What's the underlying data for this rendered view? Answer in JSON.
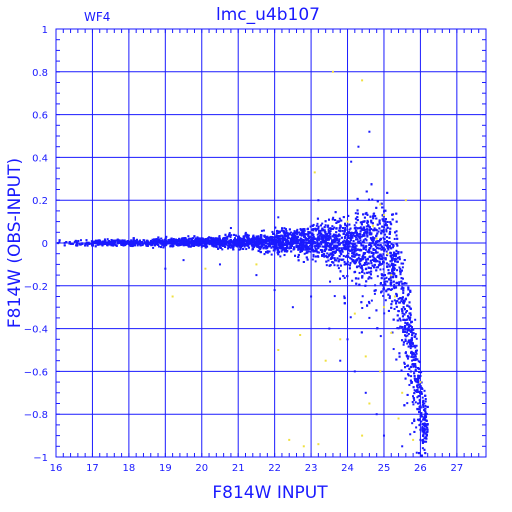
{
  "chart_data": {
    "type": "scatter",
    "title": "lmc_u4b107",
    "panel_label": "WF4",
    "xlabel": "F814W  INPUT",
    "ylabel": "F814W  (OBS-INPUT)",
    "xlim": [
      16,
      27.8
    ],
    "ylim": [
      -1,
      1
    ],
    "x_ticks": [
      16,
      17,
      18,
      19,
      20,
      21,
      22,
      23,
      24,
      25,
      26,
      27
    ],
    "y_ticks": [
      -1,
      -0.8,
      -0.6,
      -0.4,
      -0.2,
      0,
      0.2,
      0.4,
      0.6,
      0.8,
      1
    ],
    "x_tick_labels": [
      "16",
      "17",
      "18",
      "19",
      "20",
      "21",
      "22",
      "23",
      "24",
      "25",
      "26",
      "27"
    ],
    "y_tick_labels": [
      "−1",
      "−0.8",
      "−0.6",
      "−0.4",
      "−0.2",
      "0",
      "0.2",
      "0.4",
      "0.6",
      "0.8",
      "1"
    ],
    "grid": true,
    "series": [
      {
        "color": "#1a1aff",
        "note_points": "dense band centered at 0, spread grows with magnitude",
        "envelope": [
          {
            "x": 16.0,
            "spread": 0.012,
            "mean": 0.0
          },
          {
            "x": 18.0,
            "spread": 0.012,
            "mean": 0.0
          },
          {
            "x": 20.0,
            "spread": 0.018,
            "mean": 0.005
          },
          {
            "x": 21.0,
            "spread": 0.025,
            "mean": 0.005
          },
          {
            "x": 22.0,
            "spread": 0.04,
            "mean": 0.005
          },
          {
            "x": 23.0,
            "spread": 0.06,
            "mean": 0.005
          },
          {
            "x": 24.0,
            "spread": 0.1,
            "mean": 0.0
          },
          {
            "x": 24.8,
            "spread": 0.16,
            "mean": 0.0
          },
          {
            "x": 25.3,
            "spread": 0.2,
            "mean": -0.1
          },
          {
            "x": 25.8,
            "spread": 0.2,
            "mean": -0.5
          },
          {
            "x": 26.1,
            "spread": 0.1,
            "mean": -0.85
          }
        ],
        "outliers": [
          {
            "x": 19.0,
            "y": -0.12
          },
          {
            "x": 19.5,
            "y": -0.08
          },
          {
            "x": 20.5,
            "y": -0.1
          },
          {
            "x": 21.5,
            "y": -0.15
          },
          {
            "x": 22.0,
            "y": -0.22
          },
          {
            "x": 22.5,
            "y": -0.3
          },
          {
            "x": 23.0,
            "y": -0.25
          },
          {
            "x": 23.5,
            "y": -0.4
          },
          {
            "x": 23.8,
            "y": -0.55
          },
          {
            "x": 24.0,
            "y": -0.45
          },
          {
            "x": 24.2,
            "y": -0.6
          },
          {
            "x": 24.5,
            "y": -0.7
          },
          {
            "x": 24.6,
            "y": -0.35
          },
          {
            "x": 24.8,
            "y": -0.8
          },
          {
            "x": 25.0,
            "y": -0.9
          },
          {
            "x": 24.3,
            "y": 0.45
          },
          {
            "x": 24.6,
            "y": 0.52
          },
          {
            "x": 24.1,
            "y": 0.38
          },
          {
            "x": 23.2,
            "y": 0.2
          },
          {
            "x": 22.1,
            "y": 0.12
          },
          {
            "x": 20.8,
            "y": 0.07
          },
          {
            "x": 25.5,
            "y": -0.95
          },
          {
            "x": 25.9,
            "y": -0.98
          },
          {
            "x": 26.0,
            "y": -0.92
          }
        ]
      },
      {
        "color": "#f0e040",
        "points": [
          {
            "x": 23.6,
            "y": 0.8
          },
          {
            "x": 24.4,
            "y": 0.76
          },
          {
            "x": 23.1,
            "y": 0.33
          },
          {
            "x": 24.9,
            "y": 0.18
          },
          {
            "x": 25.0,
            "y": 0.13
          },
          {
            "x": 24.8,
            "y": 0.02
          },
          {
            "x": 25.1,
            "y": -0.05
          },
          {
            "x": 24.7,
            "y": 0.08
          },
          {
            "x": 25.2,
            "y": -0.15
          },
          {
            "x": 25.3,
            "y": -0.25
          },
          {
            "x": 25.2,
            "y": -0.42
          },
          {
            "x": 24.5,
            "y": -0.53
          },
          {
            "x": 24.9,
            "y": -0.6
          },
          {
            "x": 25.5,
            "y": -0.7
          },
          {
            "x": 24.6,
            "y": -0.75
          },
          {
            "x": 25.4,
            "y": -0.82
          },
          {
            "x": 24.4,
            "y": -0.9
          },
          {
            "x": 23.2,
            "y": -0.94
          },
          {
            "x": 22.4,
            "y": -0.92
          },
          {
            "x": 22.8,
            "y": -0.95
          },
          {
            "x": 25.8,
            "y": -0.92
          },
          {
            "x": 26.0,
            "y": -0.65
          },
          {
            "x": 19.2,
            "y": -0.25
          },
          {
            "x": 20.1,
            "y": -0.12
          },
          {
            "x": 22.7,
            "y": -0.43
          },
          {
            "x": 23.8,
            "y": -0.45
          },
          {
            "x": 22.1,
            "y": -0.5
          },
          {
            "x": 21.5,
            "y": -0.1
          },
          {
            "x": 24.2,
            "y": -0.33
          },
          {
            "x": 25.6,
            "y": 0.2
          },
          {
            "x": 23.4,
            "y": -0.55
          },
          {
            "x": 24.0,
            "y": 0.1
          },
          {
            "x": 25.0,
            "y": -0.3
          }
        ]
      }
    ]
  }
}
